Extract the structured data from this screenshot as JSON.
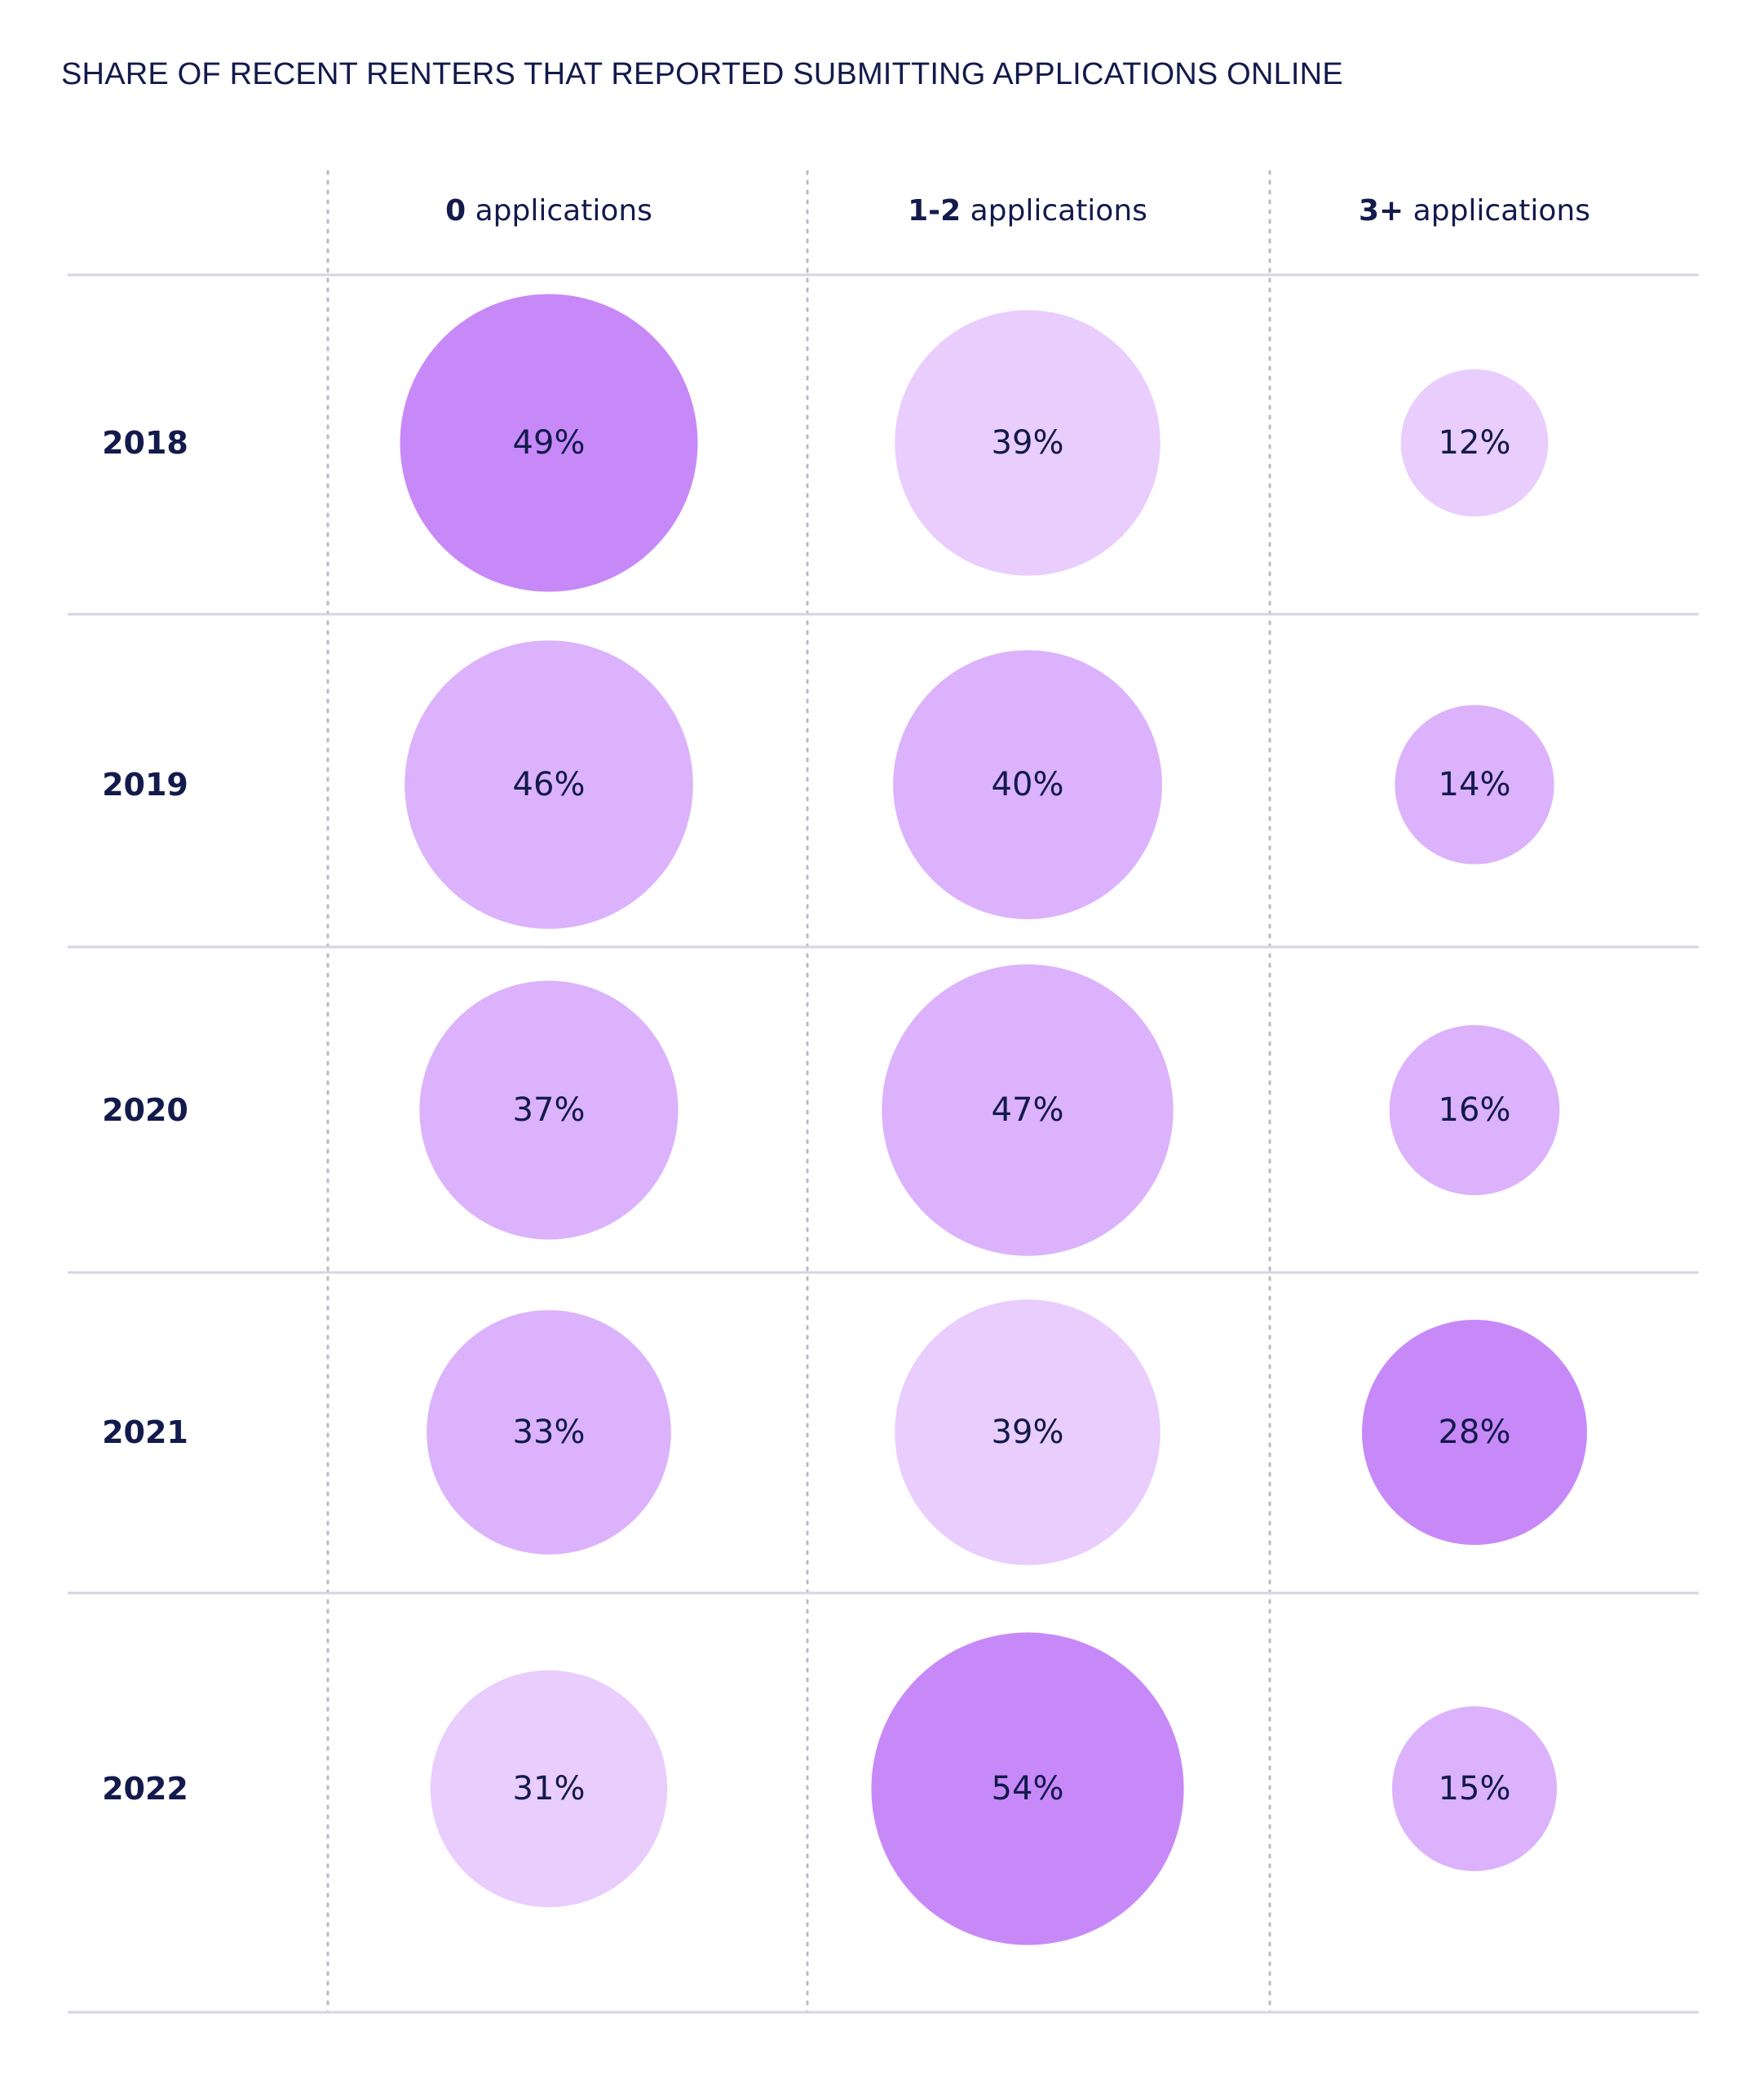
{
  "chart_data": {
    "type": "bubble-table",
    "title": "SHARE OF RECENT RENTERS THAT REPORTED SUBMITTING APPLICATIONS ONLINE",
    "columns": [
      {
        "strong": "0",
        "rest": " applications"
      },
      {
        "strong": "1-2",
        "rest": " applications"
      },
      {
        "strong": "3+",
        "rest": " applications"
      }
    ],
    "rows": [
      {
        "label": "2018",
        "values": [
          49,
          39,
          12
        ],
        "display": [
          "49%",
          "39%",
          "12%"
        ],
        "shade": [
          "dark",
          "light",
          "light"
        ]
      },
      {
        "label": "2019",
        "values": [
          46,
          40,
          14
        ],
        "display": [
          "46%",
          "40%",
          "14%"
        ],
        "shade": [
          "mid",
          "mid",
          "mid"
        ]
      },
      {
        "label": "2020",
        "values": [
          37,
          47,
          16
        ],
        "display": [
          "37%",
          "47%",
          "16%"
        ],
        "shade": [
          "mid",
          "mid",
          "mid"
        ]
      },
      {
        "label": "2021",
        "values": [
          33,
          39,
          28
        ],
        "display": [
          "33%",
          "39%",
          "28%"
        ],
        "shade": [
          "mid",
          "light",
          "dark"
        ]
      },
      {
        "label": "2022",
        "values": [
          31,
          54,
          15
        ],
        "display": [
          "31%",
          "54%",
          "15%"
        ],
        "shade": [
          "light",
          "dark",
          "mid"
        ]
      }
    ],
    "unit": "%",
    "colors": {
      "dark": "#c889f8",
      "mid": "#dbb2fb",
      "light": "#e9cdfd",
      "text": "#131a4c",
      "gridline": "#d4d5e0",
      "divider": "#b9bac6"
    }
  }
}
